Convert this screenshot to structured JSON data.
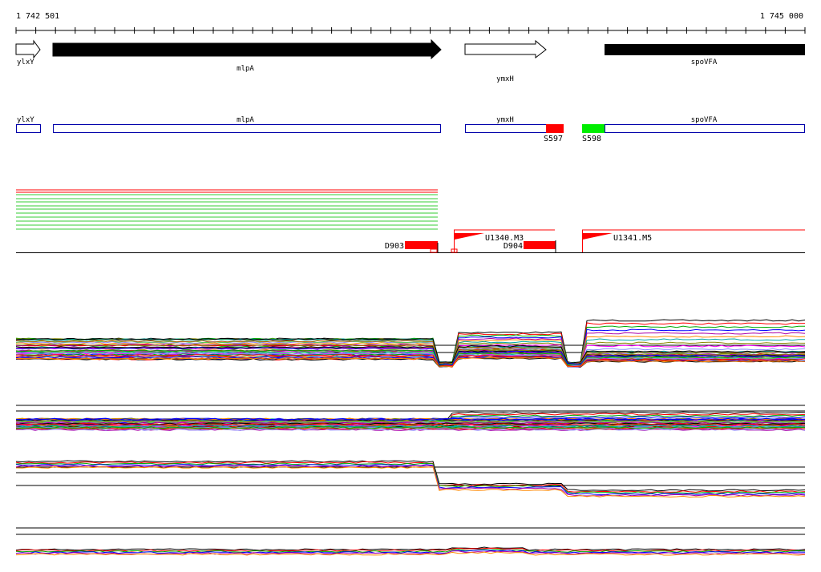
{
  "coords": {
    "start": "1 742 501",
    "end": "1 745 000"
  },
  "genes_track": [
    {
      "name": "ylxY",
      "strand": "+",
      "fill": "#ffffff"
    },
    {
      "name": "mlpA",
      "strand": "+",
      "fill": "#000000"
    },
    {
      "name": "ymxH",
      "strand": "+",
      "fill": "#ffffff"
    },
    {
      "name": "spoVFA",
      "strand": "+",
      "fill": "#000000"
    }
  ],
  "boxes_track": {
    "genes": [
      "ylxY",
      "mlpA",
      "ymxH",
      "spoVFA"
    ],
    "segments": [
      {
        "name": "S597",
        "color": "#ff0000"
      },
      {
        "name": "S598",
        "color": "#00ee00"
      }
    ]
  },
  "features": [
    {
      "name": "D903",
      "color": "#ff0000"
    },
    {
      "name": "U1340.M3",
      "color": "#ff0000"
    },
    {
      "name": "D904",
      "color": "#ff0000"
    },
    {
      "name": "U1341.M5",
      "color": "#ff0000"
    }
  ],
  "colors": {
    "gene_outline": "#0000aa",
    "series": [
      "#000000",
      "#ff0000",
      "#00aa00",
      "#0000ff",
      "#aa00aa",
      "#ff8800",
      "#00aaaa",
      "#888800",
      "#ff00ff",
      "#8888ff",
      "#aa5500",
      "#55cc55"
    ]
  }
}
